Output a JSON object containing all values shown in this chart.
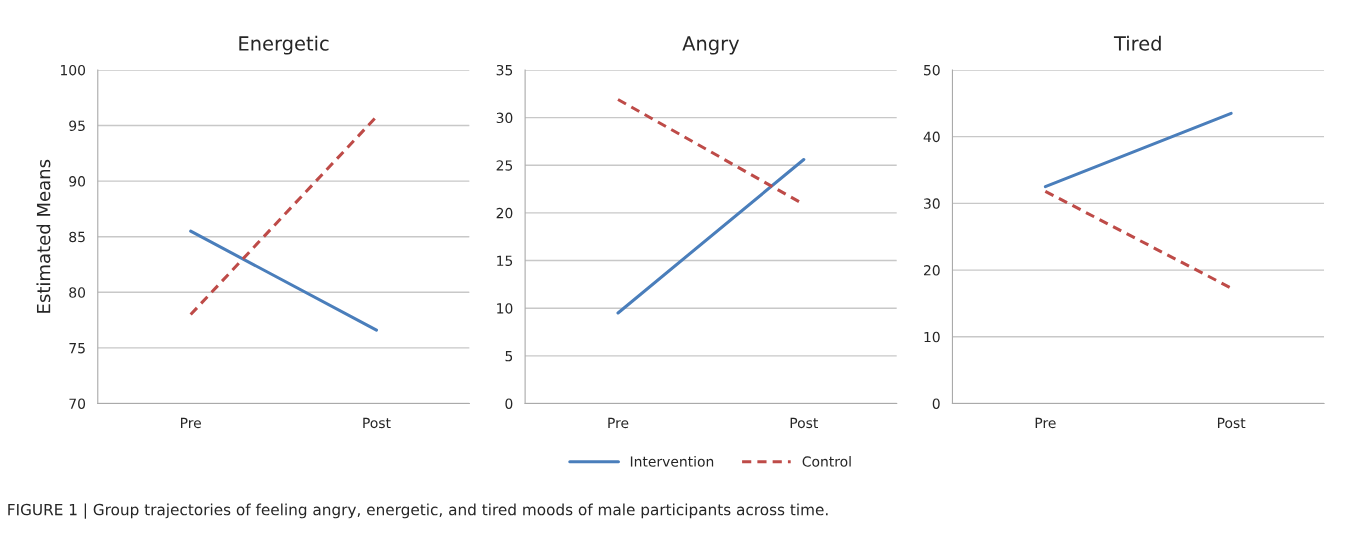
{
  "chart_data": [
    {
      "type": "line",
      "title": "Energetic",
      "ylabel": "Estimated Means",
      "categories": [
        "Pre",
        "Post"
      ],
      "ylim": [
        70,
        100
      ],
      "yticks": [
        70,
        75,
        80,
        85,
        90,
        95,
        100
      ],
      "grid": "y",
      "line_style": "solid",
      "marker": "none",
      "series": [
        {
          "color": "#4a7ebb",
          "values": [
            85.5,
            76.6
          ]
        },
        {
          "color": "#be4b48",
          "values": [
            78.0,
            95.8
          ],
          "line_style": "dashed"
        }
      ],
      "annotations": [
        "FIGURE 1 | Group trajectories of feeling angry, energetic, and tired moods of male participants across time."
      ]
    },
    {
      "type": "line",
      "title": "Angry",
      "categories": [
        "Pre",
        "Post"
      ],
      "ylim": [
        0,
        35
      ],
      "yticks": [
        0,
        5,
        10,
        15,
        20,
        25,
        30,
        35
      ],
      "grid": "y",
      "legend": "bottom",
      "line_style": "solid",
      "marker": "none",
      "series": [
        {
          "name": "Intervention",
          "color": "#4a7ebb",
          "values": [
            9.5,
            25.6
          ]
        },
        {
          "name": "Control",
          "color": "#be4b48",
          "values": [
            31.9,
            20.9
          ],
          "line_style": "dashed"
        }
      ]
    },
    {
      "type": "line",
      "title": "Tired",
      "categories": [
        "Pre",
        "Post"
      ],
      "ylim": [
        0,
        50
      ],
      "yticks": [
        0,
        10,
        20,
        30,
        40,
        50
      ],
      "grid": "y",
      "line_style": "solid",
      "marker": "none",
      "series": [
        {
          "color": "#4a7ebb",
          "values": [
            32.5,
            43.5
          ]
        },
        {
          "color": "#be4b48",
          "values": [
            31.8,
            17.3
          ],
          "line_style": "dashed"
        }
      ]
    }
  ]
}
